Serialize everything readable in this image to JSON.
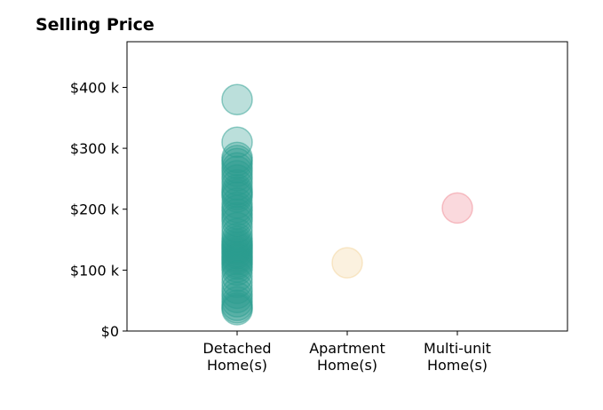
{
  "chart_data": {
    "type": "scatter",
    "title": "Selling Price",
    "xlabel": "",
    "ylabel": "",
    "categories": [
      [
        "Detached",
        "Home(s)"
      ],
      [
        "Apartment",
        "Home(s)"
      ],
      [
        "Multi-unit",
        "Home(s)"
      ]
    ],
    "y_ticks": [
      0,
      100000,
      200000,
      300000,
      400000
    ],
    "y_tick_labels": [
      "$0",
      "$100 k",
      "$200 k",
      "$300 k",
      "$400 k"
    ],
    "ylim": [
      0,
      475000
    ],
    "grid": false,
    "legend": "none",
    "series": [
      {
        "category_index": 0,
        "color": "#2a9d8f",
        "values": [
          380000,
          310000,
          285000,
          280000,
          275000,
          268000,
          262000,
          255000,
          248000,
          240000,
          232000,
          228000,
          224000,
          220000,
          210000,
          203000,
          198000,
          192000,
          186000,
          180000,
          170000,
          160000,
          152000,
          147000,
          143000,
          140000,
          137000,
          134000,
          130000,
          127000,
          123000,
          120000,
          117000,
          113000,
          110000,
          105000,
          100000,
          90000,
          80000,
          70000,
          62000,
          55000,
          48000,
          42000,
          38000,
          35000
        ]
      },
      {
        "category_index": 1,
        "color": "#f4d49a",
        "values": [
          112000
        ]
      },
      {
        "category_index": 2,
        "color": "#f08a94",
        "values": [
          202000
        ]
      }
    ]
  }
}
